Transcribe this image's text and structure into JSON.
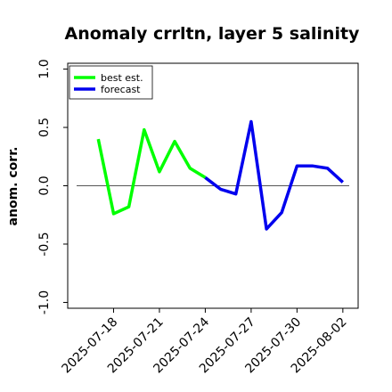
{
  "chart_data": {
    "type": "line",
    "title": "Anomaly crrltn, layer 5 salinity",
    "xlabel": "",
    "ylabel": "anom. corr.",
    "x_tick_labels": [
      "2025-07-18",
      "2025-07-21",
      "2025-07-24",
      "2025-07-27",
      "2025-07-30",
      "2025-08-02"
    ],
    "highlight_tick": "2025-07-24",
    "highlight_color": "#008000",
    "y_ticks": [
      -1.0,
      -0.5,
      0.0,
      0.5,
      1.0
    ],
    "y_tick_labels": [
      "-1.0",
      "-0.5",
      "0.0",
      "0.5",
      "1.0"
    ],
    "ylim": [
      -1.05,
      1.05
    ],
    "xlim": [
      "2025-07-15",
      "2025-08-03"
    ],
    "zero_line": true,
    "legend_position": "top-left",
    "series": [
      {
        "name": "best est.",
        "color": "#00ff00",
        "x": [
          "2025-07-17",
          "2025-07-18",
          "2025-07-19",
          "2025-07-20",
          "2025-07-21",
          "2025-07-22",
          "2025-07-23",
          "2025-07-24"
        ],
        "values": [
          0.4,
          -0.24,
          -0.18,
          0.48,
          0.12,
          0.38,
          0.15,
          0.07
        ]
      },
      {
        "name": "forecast",
        "color": "#0000ee",
        "x": [
          "2025-07-24",
          "2025-07-25",
          "2025-07-26",
          "2025-07-27",
          "2025-07-28",
          "2025-07-29",
          "2025-07-30",
          "2025-07-31",
          "2025-08-01",
          "2025-08-02"
        ],
        "values": [
          0.07,
          -0.03,
          -0.07,
          0.55,
          -0.37,
          -0.23,
          0.17,
          0.17,
          0.15,
          0.03
        ]
      }
    ]
  }
}
